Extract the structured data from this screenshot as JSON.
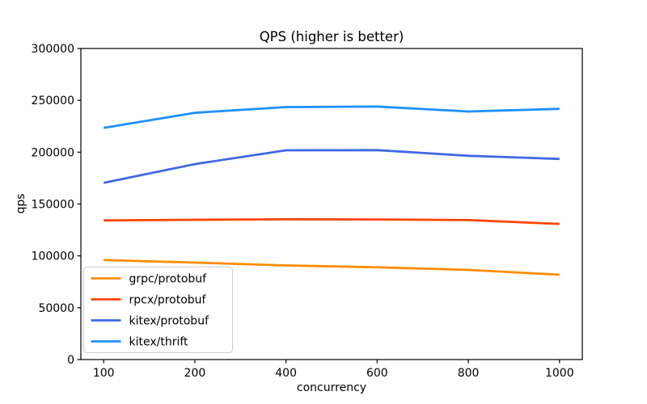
{
  "title": "QPS (higher is better)",
  "chart_data": {
    "type": "line",
    "title": "QPS (higher is better)",
    "xlabel": "concurrency",
    "ylabel": "qps",
    "categories": [
      100,
      200,
      400,
      600,
      800,
      1000
    ],
    "x_tick_labels": [
      "100",
      "200",
      "400",
      "600",
      "800",
      "1000"
    ],
    "y_ticks": [
      0,
      50000,
      100000,
      150000,
      200000,
      250000,
      300000
    ],
    "y_tick_labels": [
      "0",
      "50000",
      "100000",
      "150000",
      "200000",
      "250000",
      "300000"
    ],
    "ylim": [
      0,
      300000
    ],
    "grid": false,
    "legend_position": "lower-left",
    "legend_entries": [
      "grpc/protobuf",
      "rpcx/protobuf",
      "kitex/protobuf",
      "kitex/thrift"
    ],
    "series": [
      {
        "name": "grpc/protobuf",
        "color": "#FF8C00",
        "values": [
          96000,
          93500,
          90800,
          89000,
          86500,
          81800
        ]
      },
      {
        "name": "rpcx/protobuf",
        "color": "#FF4500",
        "values": [
          134200,
          134800,
          135300,
          135100,
          134500,
          130800
        ]
      },
      {
        "name": "kitex/protobuf",
        "color": "#4169E1",
        "values": [
          170500,
          188500,
          201800,
          202000,
          196500,
          193500
        ]
      },
      {
        "name": "kitex/thrift",
        "color": "#1E90FF",
        "values": [
          223500,
          238000,
          243500,
          244000,
          239200,
          241800
        ]
      }
    ],
    "colors": {
      "axis": "#000000",
      "background": "#ffffff",
      "legend_border": "#cccccc"
    }
  }
}
